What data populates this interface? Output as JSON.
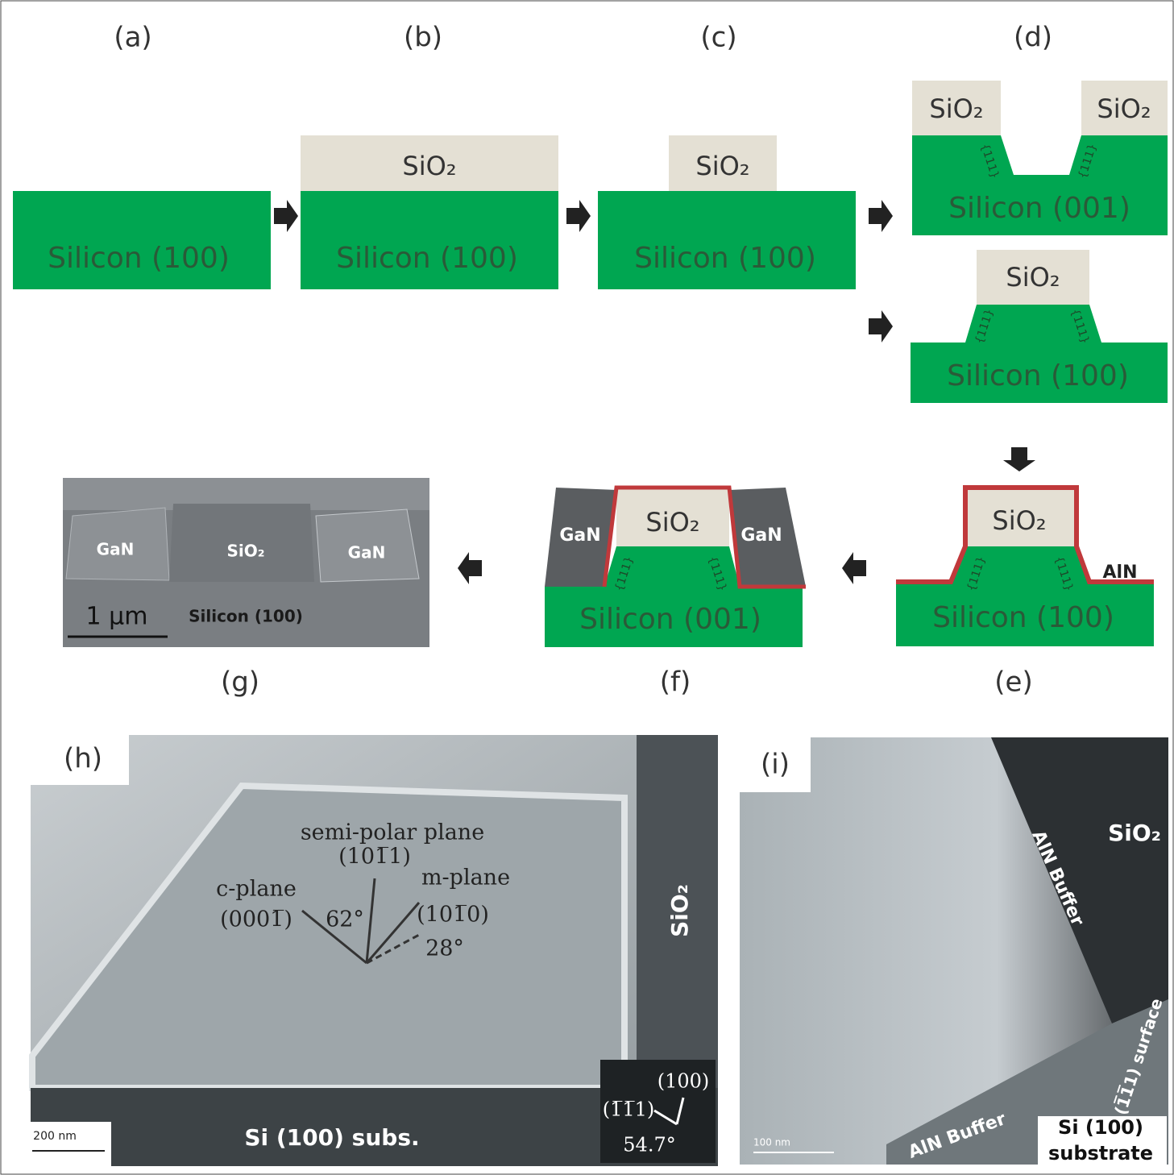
{
  "panels": {
    "a": {
      "label": "(a)",
      "substrate": "Silicon (100)"
    },
    "b": {
      "label": "(b)",
      "oxide": "SiO₂",
      "substrate": "Silicon (100)"
    },
    "c": {
      "label": "(c)",
      "oxide": "SiO₂",
      "substrate": "Silicon (100)"
    },
    "d": {
      "label": "(d)",
      "facet": "{111}",
      "top": {
        "oxide_left": "SiO₂",
        "oxide_right": "SiO₂",
        "substrate": "Silicon (001)"
      },
      "bottom": {
        "oxide": "SiO₂",
        "substrate": "Silicon (100)"
      }
    },
    "e": {
      "label": "(e)",
      "oxide": "SiO₂",
      "buffer": "AlN",
      "substrate": "Silicon (100)",
      "facet": "{111}"
    },
    "f": {
      "label": "(f)",
      "gan_left": "GaN",
      "oxide": "SiO₂",
      "gan_right": "GaN",
      "substrate": "Silicon (001)",
      "facet": "{111}"
    },
    "g": {
      "label": "(g)",
      "gan_left": "GaN",
      "oxide": "SiO₂",
      "gan_right": "GaN",
      "scale": "1 μm",
      "substrate": "Silicon (100)"
    },
    "h": {
      "label": "(h)",
      "semi_polar": "semi-polar plane",
      "semi_polar_index": "(101̅1)",
      "c_plane": "c-plane",
      "c_plane_index": "(0001̅)",
      "m_plane": "m-plane",
      "m_plane_index": "(101̅0)",
      "angle_62": "62°",
      "angle_28": "28°",
      "oxide": "SiO₂",
      "substrate": "Si (100) subs.",
      "scale": "200 nm",
      "inset_100": "(100)",
      "inset_111": "(1̅1̅1)",
      "inset_angle": "54.7°"
    },
    "i": {
      "label": "(i)",
      "oxide": "SiO₂",
      "buffer_top": "AlN Buffer",
      "buffer_bottom": "AlN Buffer",
      "surface": "Si (1̅1̅1) surface",
      "substrate_line1": "Si (100)",
      "substrate_line2": "substrate",
      "scale": "100 nm"
    }
  }
}
